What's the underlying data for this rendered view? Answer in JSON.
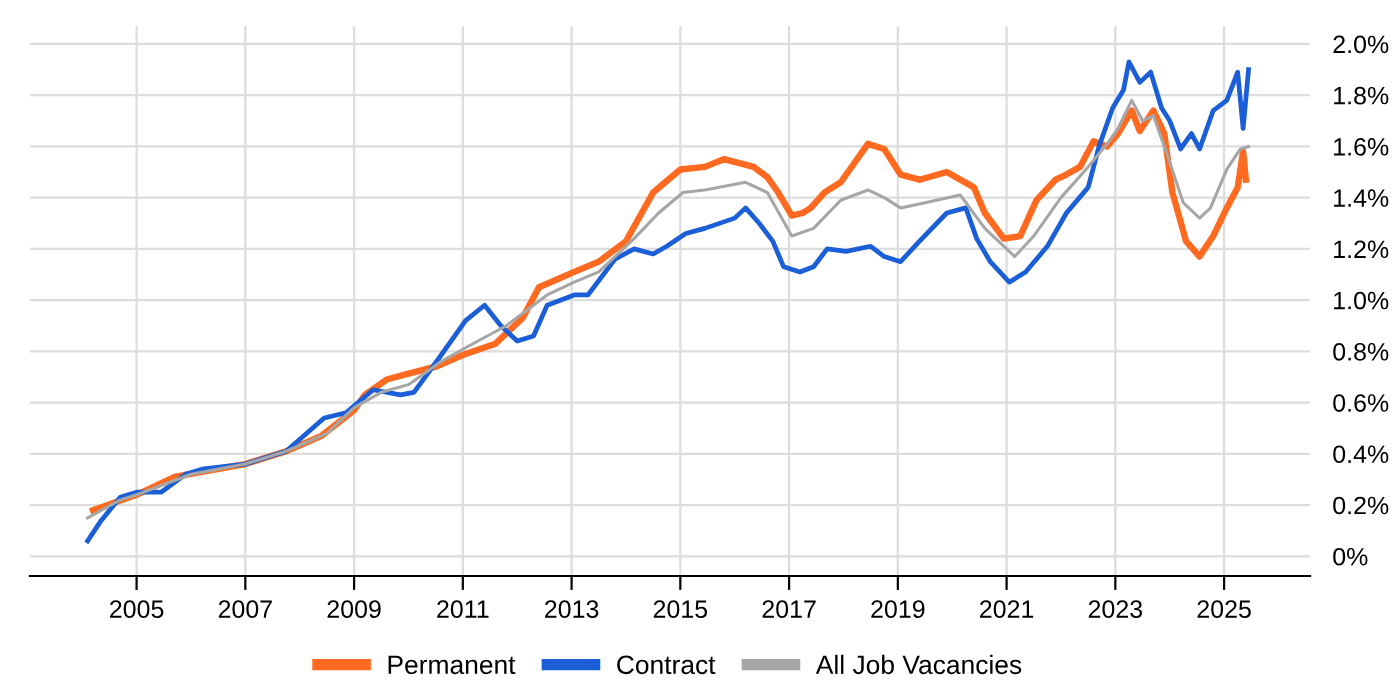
{
  "chart_data": {
    "type": "line",
    "xlim": [
      2003.04,
      2026.58
    ],
    "ylim": [
      -0.077,
      2.07
    ],
    "xticks": [
      2005,
      2007,
      2009,
      2011,
      2013,
      2015,
      2017,
      2019,
      2021,
      2023,
      2025
    ],
    "yticks": [
      {
        "value": 0,
        "label": "0%"
      },
      {
        "value": 0.2,
        "label": "0.2%"
      },
      {
        "value": 0.4,
        "label": "0.4%"
      },
      {
        "value": 0.6,
        "label": "0.6%"
      },
      {
        "value": 0.8,
        "label": "0.8%"
      },
      {
        "value": 1.0,
        "label": "1.0%"
      },
      {
        "value": 1.2,
        "label": "1.2%"
      },
      {
        "value": 1.4,
        "label": "1.4%"
      },
      {
        "value": 1.6,
        "label": "1.6%"
      },
      {
        "value": 1.8,
        "label": "1.8%"
      },
      {
        "value": 2.0,
        "label": "2.0%"
      }
    ],
    "grid": true,
    "legend": "bottom",
    "marker": "none",
    "line_style": "solid",
    "series": [
      {
        "name": "Permanent",
        "color": "#ff6a20",
        "x": [
          2004.2,
          2005,
          2005.7,
          2006.2,
          2007,
          2007.75,
          2008.4,
          2009,
          2009.2,
          2009.6,
          2009.95,
          2010.5,
          2011.05,
          2011.6,
          2012.1,
          2012.4,
          2013.05,
          2013.5,
          2014,
          2014.5,
          2015,
          2015.45,
          2015.8,
          2016.35,
          2016.6,
          2016.8,
          2017.05,
          2017.25,
          2017.4,
          2017.65,
          2017.95,
          2018.45,
          2018.75,
          2019.05,
          2019.4,
          2019.9,
          2020.4,
          2020.6,
          2020.95,
          2021.25,
          2021.55,
          2021.9,
          2022.1,
          2022.35,
          2022.6,
          2022.85,
          2023.05,
          2023.3,
          2023.45,
          2023.7,
          2023.9,
          2024.05,
          2024.3,
          2024.55,
          2024.8,
          2025.05,
          2025.25,
          2025.35,
          2025.4
        ],
        "values": [
          0.18,
          0.24,
          0.31,
          0.33,
          0.36,
          0.41,
          0.47,
          0.57,
          0.63,
          0.69,
          0.71,
          0.74,
          0.79,
          0.83,
          0.93,
          1.05,
          1.11,
          1.15,
          1.23,
          1.42,
          1.51,
          1.52,
          1.55,
          1.52,
          1.48,
          1.42,
          1.33,
          1.34,
          1.36,
          1.42,
          1.46,
          1.61,
          1.59,
          1.49,
          1.47,
          1.5,
          1.44,
          1.34,
          1.24,
          1.25,
          1.39,
          1.47,
          1.49,
          1.52,
          1.62,
          1.6,
          1.65,
          1.74,
          1.66,
          1.74,
          1.65,
          1.42,
          1.23,
          1.17,
          1.25,
          1.36,
          1.44,
          1.58,
          1.47
        ]
      },
      {
        "name": "Contract",
        "color": "#1a5ed8",
        "x": [
          2004.1,
          2004.35,
          2004.7,
          2005,
          2005.45,
          2005.9,
          2006.2,
          2007,
          2007.75,
          2008.45,
          2008.85,
          2009.35,
          2009.85,
          2010.1,
          2010.55,
          2011.05,
          2011.4,
          2011.7,
          2012,
          2012.3,
          2012.55,
          2013.05,
          2013.3,
          2013.8,
          2014.15,
          2014.5,
          2014.75,
          2015.1,
          2015.45,
          2016,
          2016.2,
          2016.45,
          2016.7,
          2016.9,
          2017.2,
          2017.45,
          2017.7,
          2018.05,
          2018.5,
          2018.75,
          2019.05,
          2019.4,
          2019.9,
          2020.25,
          2020.45,
          2020.7,
          2021.05,
          2021.35,
          2021.75,
          2022.1,
          2022.5,
          2022.7,
          2022.95,
          2023.15,
          2023.25,
          2023.45,
          2023.65,
          2023.85,
          2024,
          2024.2,
          2024.4,
          2024.55,
          2024.8,
          2025.05,
          2025.25,
          2025.35,
          2025.45
        ],
        "values": [
          0.06,
          0.14,
          0.23,
          0.25,
          0.25,
          0.32,
          0.34,
          0.36,
          0.41,
          0.54,
          0.56,
          0.65,
          0.63,
          0.64,
          0.77,
          0.92,
          0.98,
          0.9,
          0.84,
          0.86,
          0.98,
          1.02,
          1.02,
          1.16,
          1.2,
          1.18,
          1.21,
          1.26,
          1.28,
          1.32,
          1.36,
          1.3,
          1.23,
          1.13,
          1.11,
          1.13,
          1.2,
          1.19,
          1.21,
          1.17,
          1.15,
          1.23,
          1.34,
          1.36,
          1.24,
          1.15,
          1.07,
          1.11,
          1.21,
          1.34,
          1.44,
          1.6,
          1.75,
          1.82,
          1.93,
          1.85,
          1.89,
          1.75,
          1.7,
          1.59,
          1.65,
          1.59,
          1.74,
          1.78,
          1.89,
          1.67,
          1.9
        ]
      },
      {
        "name": "All Job Vacancies",
        "color": "#a6a6a6",
        "x": [
          2004.1,
          2004.7,
          2005,
          2006,
          2007,
          2007.75,
          2008.5,
          2009,
          2009.5,
          2010,
          2010.6,
          2011.1,
          2011.8,
          2012.55,
          2013.05,
          2013.5,
          2014.15,
          2014.6,
          2015.05,
          2015.45,
          2016.2,
          2016.6,
          2017.05,
          2017.45,
          2017.95,
          2018.45,
          2018.75,
          2019.05,
          2019.5,
          2020.15,
          2020.6,
          2021.15,
          2021.5,
          2022,
          2022.5,
          2022.85,
          2023.05,
          2023.3,
          2023.5,
          2023.7,
          2023.95,
          2024.25,
          2024.55,
          2024.75,
          2025.05,
          2025.3,
          2025.45
        ],
        "values": [
          0.15,
          0.22,
          0.24,
          0.32,
          0.36,
          0.41,
          0.48,
          0.58,
          0.64,
          0.67,
          0.76,
          0.82,
          0.9,
          1.02,
          1.07,
          1.11,
          1.24,
          1.34,
          1.42,
          1.43,
          1.46,
          1.42,
          1.25,
          1.28,
          1.39,
          1.43,
          1.4,
          1.36,
          1.38,
          1.41,
          1.28,
          1.17,
          1.25,
          1.4,
          1.52,
          1.61,
          1.67,
          1.78,
          1.7,
          1.72,
          1.57,
          1.38,
          1.32,
          1.36,
          1.51,
          1.59,
          1.6
        ]
      }
    ]
  }
}
